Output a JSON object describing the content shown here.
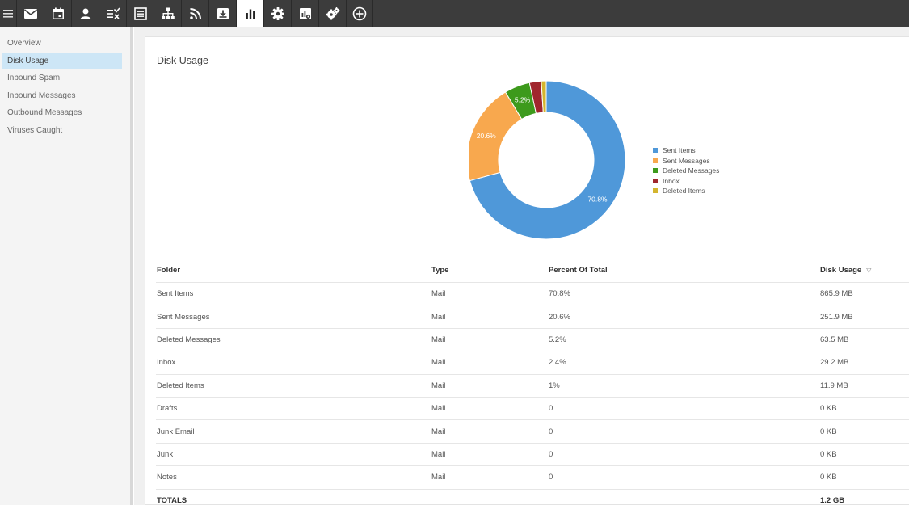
{
  "toolbar": {
    "buttons": [
      {
        "name": "mail",
        "active": false
      },
      {
        "name": "calendar",
        "active": false
      },
      {
        "name": "contacts",
        "active": false
      },
      {
        "name": "tasks",
        "active": false
      },
      {
        "name": "notes",
        "active": false
      },
      {
        "name": "domains",
        "active": false
      },
      {
        "name": "rss",
        "active": false
      },
      {
        "name": "download",
        "active": false
      },
      {
        "name": "reports",
        "active": true
      },
      {
        "name": "settings",
        "active": false
      },
      {
        "name": "server-reports",
        "active": false
      },
      {
        "name": "admin-settings",
        "active": false
      },
      {
        "name": "add",
        "active": false
      }
    ]
  },
  "sidebar": {
    "items": [
      {
        "label": "Overview"
      },
      {
        "label": "Disk Usage"
      },
      {
        "label": "Inbound Spam"
      },
      {
        "label": "Inbound Messages"
      },
      {
        "label": "Outbound Messages"
      },
      {
        "label": "Viruses Caught"
      }
    ],
    "active_index": 1
  },
  "page": {
    "title": "Disk Usage"
  },
  "chart_data": {
    "type": "pie",
    "title": "Disk Usage",
    "donut": true,
    "legend_position": "right",
    "slices": [
      {
        "label": "Sent Items",
        "value": 70.8,
        "display": "70.8%",
        "color": "#4f98d9"
      },
      {
        "label": "Sent Messages",
        "value": 20.6,
        "display": "20.6%",
        "color": "#f8a84e"
      },
      {
        "label": "Deleted Messages",
        "value": 5.2,
        "display": "5.2%",
        "color": "#3d9a1c"
      },
      {
        "label": "Inbox",
        "value": 2.4,
        "display": "",
        "color": "#a0262d"
      },
      {
        "label": "Deleted Items",
        "value": 1.0,
        "display": "",
        "color": "#d4b52e"
      }
    ]
  },
  "table": {
    "headers": {
      "folder": "Folder",
      "type": "Type",
      "percent": "Percent Of Total",
      "disk": "Disk Usage"
    },
    "rows": [
      {
        "folder": "Sent Items",
        "type": "Mail",
        "percent": "70.8%",
        "disk": "865.9 MB"
      },
      {
        "folder": "Sent Messages",
        "type": "Mail",
        "percent": "20.6%",
        "disk": "251.9 MB"
      },
      {
        "folder": "Deleted Messages",
        "type": "Mail",
        "percent": "5.2%",
        "disk": "63.5 MB"
      },
      {
        "folder": "Inbox",
        "type": "Mail",
        "percent": "2.4%",
        "disk": "29.2 MB"
      },
      {
        "folder": "Deleted Items",
        "type": "Mail",
        "percent": "1%",
        "disk": "11.9 MB"
      },
      {
        "folder": "Drafts",
        "type": "Mail",
        "percent": "0",
        "disk": "0 KB"
      },
      {
        "folder": "Junk Email",
        "type": "Mail",
        "percent": "0",
        "disk": "0 KB"
      },
      {
        "folder": "Junk",
        "type": "Mail",
        "percent": "0",
        "disk": "0 KB"
      },
      {
        "folder": "Notes",
        "type": "Mail",
        "percent": "0",
        "disk": "0 KB"
      }
    ],
    "totals": {
      "label": "TOTALS",
      "disk": "1.2 GB"
    }
  }
}
